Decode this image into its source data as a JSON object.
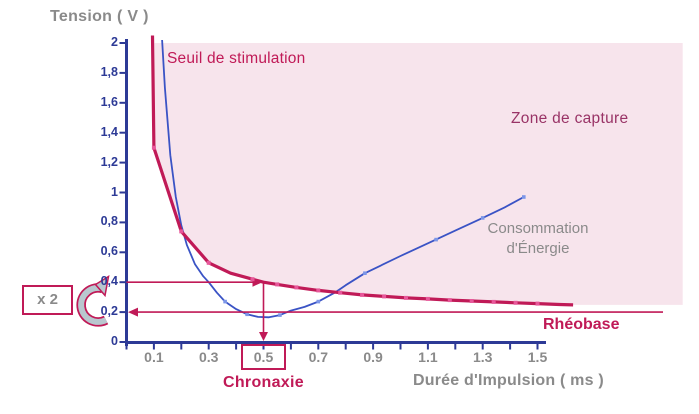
{
  "labels": {
    "y_axis_title": "Tension ( V )",
    "x_axis_title": "Durée d'Impulsion ( ms )",
    "threshold_curve": "Seuil de stimulation",
    "capture_zone": "Zone de capture",
    "energy_line1": "Consommation",
    "energy_line2": "d'Énergie",
    "rheobase": "Rhéobase",
    "chronaxie": "Chronaxie",
    "multiplier": "x 2"
  },
  "colors": {
    "crimson": "#c01a57",
    "navy_axis": "#2d3a96",
    "blue_curve": "#3a53c5",
    "pink_zone": "#f7e4ec",
    "pink_marker": "#e7589a",
    "light_blue_marker": "#7c96e8",
    "gray_text": "#8a8a8a",
    "purple_text": "#993366",
    "arrow_fill": "#b9c7cf"
  },
  "chart_data": {
    "type": "line",
    "xlabel": "Durée d'Impulsion ( ms )",
    "ylabel": "Tension ( V )",
    "xlim": [
      0,
      2.03
    ],
    "ylim": [
      0,
      2.05
    ],
    "grid": false,
    "x_tick_labels": [
      "0.1",
      "0.3",
      "0.5",
      "0.7",
      "0.9",
      "1.1",
      "1.3",
      "1.5"
    ],
    "x_tick_values": [
      0.1,
      0.3,
      0.5,
      0.7,
      0.9,
      1.1,
      1.3,
      1.5
    ],
    "x_minor_tick_step": 0.1,
    "x_minor_tick_max": 1.5,
    "y_tick_labels": [
      "0",
      "0,2",
      "0,4",
      "0,6",
      "0,8",
      "1",
      "1,2",
      "1,4",
      "1,6",
      "1,8",
      "2"
    ],
    "y_tick_values": [
      0,
      0.2,
      0.4,
      0.6,
      0.8,
      1,
      1.2,
      1.4,
      1.6,
      1.8,
      2
    ],
    "rheobase_v": 0.2,
    "double_rheobase_v": 0.4,
    "chronaxie_ms": 0.5,
    "chronaxie_tick_label": "0.5",
    "capture_zone": {
      "label": "Zone de capture",
      "top_v": 2.0,
      "right_x": 2.03,
      "start_x": 0.102
    },
    "series": [
      {
        "name": "Seuil de stimulation",
        "points": [
          [
            0.095,
            2.05
          ],
          [
            0.1,
            1.3
          ],
          [
            0.2,
            0.74
          ],
          [
            0.3,
            0.53
          ],
          [
            0.38,
            0.46
          ],
          [
            0.46,
            0.42
          ],
          [
            0.5,
            0.4
          ],
          [
            0.55,
            0.385
          ],
          [
            0.62,
            0.365
          ],
          [
            0.7,
            0.345
          ],
          [
            0.78,
            0.33
          ],
          [
            0.86,
            0.315
          ],
          [
            0.94,
            0.305
          ],
          [
            1.02,
            0.295
          ],
          [
            1.1,
            0.288
          ],
          [
            1.18,
            0.28
          ],
          [
            1.26,
            0.274
          ],
          [
            1.34,
            0.268
          ],
          [
            1.42,
            0.262
          ],
          [
            1.5,
            0.257
          ],
          [
            1.58,
            0.251
          ],
          [
            1.63,
            0.248
          ]
        ],
        "markers": [
          [
            0.1,
            1.3
          ],
          [
            0.2,
            0.74
          ],
          [
            0.3,
            0.53
          ],
          [
            0.46,
            0.42
          ],
          [
            0.55,
            0.385
          ],
          [
            0.62,
            0.365
          ],
          [
            0.7,
            0.345
          ],
          [
            0.78,
            0.33
          ],
          [
            0.86,
            0.315
          ],
          [
            0.94,
            0.305
          ],
          [
            1.02,
            0.295
          ],
          [
            1.1,
            0.288
          ],
          [
            1.18,
            0.28
          ],
          [
            1.26,
            0.274
          ],
          [
            1.34,
            0.268
          ],
          [
            1.42,
            0.262
          ],
          [
            1.5,
            0.257
          ]
        ]
      },
      {
        "name": "Consommation d'Énergie",
        "points": [
          [
            0.13,
            2.02
          ],
          [
            0.14,
            1.7
          ],
          [
            0.16,
            1.25
          ],
          [
            0.18,
            0.97
          ],
          [
            0.2,
            0.78
          ],
          [
            0.22,
            0.65
          ],
          [
            0.25,
            0.52
          ],
          [
            0.28,
            0.44
          ],
          [
            0.3,
            0.4
          ],
          [
            0.33,
            0.33
          ],
          [
            0.36,
            0.27
          ],
          [
            0.4,
            0.22
          ],
          [
            0.44,
            0.185
          ],
          [
            0.48,
            0.168
          ],
          [
            0.52,
            0.165
          ],
          [
            0.56,
            0.18
          ],
          [
            0.6,
            0.21
          ],
          [
            0.65,
            0.235
          ],
          [
            0.7,
            0.27
          ],
          [
            0.76,
            0.33
          ],
          [
            0.8,
            0.38
          ],
          [
            0.87,
            0.46
          ],
          [
            1.0,
            0.575
          ],
          [
            1.1,
            0.66
          ],
          [
            1.2,
            0.745
          ],
          [
            1.3,
            0.83
          ],
          [
            1.38,
            0.9
          ],
          [
            1.45,
            0.97
          ]
        ],
        "markers": [
          [
            0.36,
            0.27
          ],
          [
            0.44,
            0.185
          ],
          [
            0.56,
            0.18
          ],
          [
            0.7,
            0.27
          ],
          [
            0.87,
            0.46
          ],
          [
            1.13,
            0.685
          ],
          [
            1.3,
            0.83
          ],
          [
            1.45,
            0.97
          ]
        ]
      }
    ]
  }
}
